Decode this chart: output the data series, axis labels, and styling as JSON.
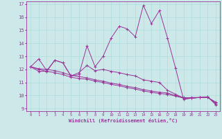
{
  "xlabel": "Windchill (Refroidissement éolien,°C)",
  "x_ticks": [
    0,
    1,
    2,
    3,
    4,
    5,
    6,
    7,
    8,
    9,
    10,
    11,
    12,
    13,
    14,
    15,
    16,
    17,
    18,
    19,
    20,
    21,
    22,
    23
  ],
  "ylim": [
    8.8,
    17.2
  ],
  "xlim": [
    -0.5,
    23.5
  ],
  "y_ticks": [
    9,
    10,
    11,
    12,
    13,
    14,
    15,
    16,
    17
  ],
  "background_color": "#cce8e8",
  "line_color": "#993399",
  "grid_color": "#aadddd",
  "series": [
    [
      12.2,
      12.8,
      11.9,
      12.7,
      12.5,
      11.5,
      11.6,
      13.8,
      12.2,
      13.0,
      14.4,
      15.3,
      15.1,
      14.5,
      16.9,
      15.5,
      16.5,
      14.4,
      12.1,
      9.7,
      9.8,
      9.85,
      9.9,
      9.3
    ],
    [
      12.2,
      12.0,
      11.85,
      12.7,
      12.5,
      11.5,
      11.75,
      12.3,
      11.9,
      12.0,
      11.85,
      11.75,
      11.6,
      11.5,
      11.2,
      11.1,
      11.0,
      10.4,
      10.1,
      9.8,
      9.85,
      9.85,
      9.9,
      9.35
    ],
    [
      12.2,
      11.85,
      11.85,
      11.75,
      11.6,
      11.4,
      11.3,
      11.25,
      11.1,
      11.0,
      10.85,
      10.75,
      10.6,
      10.5,
      10.35,
      10.25,
      10.15,
      10.1,
      9.95,
      9.8,
      9.8,
      9.85,
      9.85,
      9.45
    ],
    [
      12.2,
      12.05,
      12.0,
      11.9,
      11.75,
      11.55,
      11.45,
      11.35,
      11.2,
      11.1,
      10.95,
      10.85,
      10.7,
      10.6,
      10.45,
      10.35,
      10.25,
      10.2,
      10.0,
      9.85,
      9.8,
      9.85,
      9.85,
      9.5
    ]
  ]
}
